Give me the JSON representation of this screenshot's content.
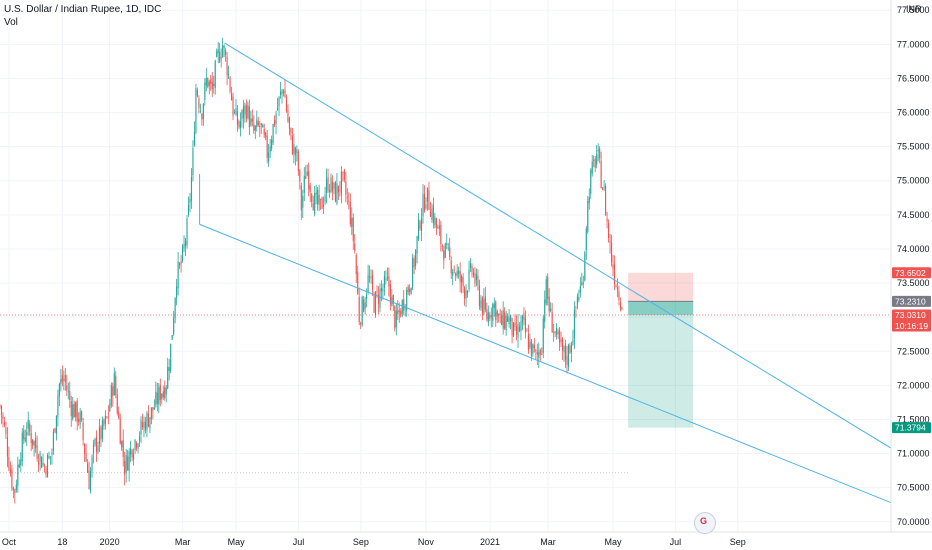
{
  "header": {
    "title": "U.S. Dollar / Indian Rupee, 1D, IDC",
    "vol_label": "Vol"
  },
  "currency_label": "INR",
  "logo_glyph": "G",
  "chart_data": {
    "type": "candlestick",
    "title": "U.S. Dollar / Indian Rupee, 1D, IDC",
    "xlabel": "",
    "ylabel": "",
    "ylim": [
      69.85,
      77.65
    ],
    "y_ticks": [
      "70.0000",
      "70.5000",
      "71.0000",
      "71.5000",
      "72.0000",
      "72.5000",
      "73.0000",
      "73.5000",
      "74.0000",
      "74.5000",
      "75.0000",
      "75.5000",
      "76.0000",
      "76.5000",
      "77.0000",
      "77.5000"
    ],
    "x_ticks": [
      {
        "label": "Oct",
        "t": 0.01
      },
      {
        "label": "18",
        "t": 0.07
      },
      {
        "label": "2020",
        "t": 0.123
      },
      {
        "label": "Mar",
        "t": 0.205
      },
      {
        "label": "May",
        "t": 0.265
      },
      {
        "label": "Jul",
        "t": 0.335
      },
      {
        "label": "Sep",
        "t": 0.405
      },
      {
        "label": "Nov",
        "t": 0.478
      },
      {
        "label": "2021",
        "t": 0.55
      },
      {
        "label": "Mar",
        "t": 0.615
      },
      {
        "label": "May",
        "t": 0.688
      },
      {
        "label": "Jul",
        "t": 0.758
      },
      {
        "label": "Sep",
        "t": 0.828
      }
    ],
    "colors": {
      "up": "#26a69a",
      "down": "#ef5350",
      "trendline": "#4fb3e8",
      "grid": "#f0f3fa",
      "axis_text": "#131722"
    },
    "price_path": [
      [
        0.0,
        71.7
      ],
      [
        0.006,
        71.3
      ],
      [
        0.012,
        70.7
      ],
      [
        0.016,
        70.4
      ],
      [
        0.022,
        71.0
      ],
      [
        0.03,
        71.4
      ],
      [
        0.04,
        71.1
      ],
      [
        0.05,
        70.8
      ],
      [
        0.058,
        71.0
      ],
      [
        0.066,
        72.0
      ],
      [
        0.072,
        72.1
      ],
      [
        0.08,
        71.7
      ],
      [
        0.09,
        71.5
      ],
      [
        0.1,
        70.6
      ],
      [
        0.106,
        71.1
      ],
      [
        0.114,
        71.3
      ],
      [
        0.12,
        71.5
      ],
      [
        0.128,
        72.1
      ],
      [
        0.134,
        71.4
      ],
      [
        0.14,
        70.8
      ],
      [
        0.148,
        71.1
      ],
      [
        0.16,
        71.4
      ],
      [
        0.17,
        71.6
      ],
      [
        0.18,
        71.9
      ],
      [
        0.186,
        72.0
      ],
      [
        0.192,
        72.6
      ],
      [
        0.198,
        73.6
      ],
      [
        0.204,
        73.8
      ],
      [
        0.21,
        74.3
      ],
      [
        0.216,
        75.2
      ],
      [
        0.22,
        76.4
      ],
      [
        0.226,
        76.0
      ],
      [
        0.232,
        76.5
      ],
      [
        0.238,
        76.3
      ],
      [
        0.244,
        76.8
      ],
      [
        0.25,
        77.0
      ],
      [
        0.256,
        76.6
      ],
      [
        0.262,
        76.0
      ],
      [
        0.268,
        75.8
      ],
      [
        0.276,
        76.1
      ],
      [
        0.284,
        75.7
      ],
      [
        0.292,
        75.8
      ],
      [
        0.3,
        75.4
      ],
      [
        0.31,
        76.0
      ],
      [
        0.318,
        76.4
      ],
      [
        0.326,
        75.6
      ],
      [
        0.334,
        75.3
      ],
      [
        0.338,
        74.6
      ],
      [
        0.344,
        75.2
      ],
      [
        0.352,
        74.7
      ],
      [
        0.36,
        74.6
      ],
      [
        0.368,
        75.0
      ],
      [
        0.376,
        74.8
      ],
      [
        0.384,
        75.0
      ],
      [
        0.392,
        74.6
      ],
      [
        0.398,
        74.0
      ],
      [
        0.403,
        73.0
      ],
      [
        0.408,
        73.2
      ],
      [
        0.414,
        73.6
      ],
      [
        0.42,
        73.2
      ],
      [
        0.428,
        73.4
      ],
      [
        0.436,
        73.5
      ],
      [
        0.444,
        72.9
      ],
      [
        0.452,
        73.2
      ],
      [
        0.46,
        73.5
      ],
      [
        0.466,
        73.9
      ],
      [
        0.472,
        74.5
      ],
      [
        0.478,
        74.8
      ],
      [
        0.484,
        74.6
      ],
      [
        0.49,
        74.3
      ],
      [
        0.498,
        74.0
      ],
      [
        0.506,
        73.8
      ],
      [
        0.514,
        73.6
      ],
      [
        0.522,
        73.4
      ],
      [
        0.53,
        73.7
      ],
      [
        0.538,
        73.3
      ],
      [
        0.546,
        73.0
      ],
      [
        0.554,
        73.2
      ],
      [
        0.562,
        72.9
      ],
      [
        0.57,
        73.0
      ],
      [
        0.578,
        72.7
      ],
      [
        0.586,
        72.9
      ],
      [
        0.594,
        72.6
      ],
      [
        0.602,
        72.4
      ],
      [
        0.608,
        72.6
      ],
      [
        0.612,
        73.5
      ],
      [
        0.618,
        73.0
      ],
      [
        0.624,
        72.7
      ],
      [
        0.63,
        72.5
      ],
      [
        0.636,
        72.4
      ],
      [
        0.642,
        72.7
      ],
      [
        0.648,
        73.3
      ],
      [
        0.654,
        73.5
      ],
      [
        0.658,
        74.4
      ],
      [
        0.662,
        75.0
      ],
      [
        0.666,
        75.2
      ],
      [
        0.67,
        75.4
      ],
      [
        0.674,
        75.1
      ],
      [
        0.678,
        74.8
      ],
      [
        0.682,
        74.3
      ],
      [
        0.686,
        73.9
      ],
      [
        0.69,
        73.6
      ],
      [
        0.694,
        73.4
      ],
      [
        0.698,
        73.2
      ]
    ],
    "volume_baseline": 70.72,
    "trendlines": [
      {
        "name": "upper",
        "from": [
          0.252,
          77.02
        ],
        "to": [
          1.0,
          71.08
        ]
      },
      {
        "name": "lower",
        "from": [
          0.224,
          74.36
        ],
        "to": [
          1.0,
          70.28
        ]
      }
    ],
    "support_segment": {
      "from": [
        0.224,
        74.36
      ],
      "to": [
        0.224,
        75.1
      ]
    },
    "position": {
      "entry": 73.231,
      "stop": 73.6502,
      "target": 71.3794,
      "current": 73.031,
      "x_from": 0.705,
      "x_to": 0.778
    },
    "price_labels": [
      {
        "value": 73.6502,
        "text": "73.6502",
        "color": "#ef5350"
      },
      {
        "value": 73.231,
        "text": "73.2310",
        "color": "#787b86"
      },
      {
        "value": 73.031,
        "text": "73.0310",
        "color": "#ef5350",
        "sub": "10:16:19"
      },
      {
        "value": 71.3794,
        "text": "71.3794",
        "color": "#089981"
      }
    ]
  }
}
